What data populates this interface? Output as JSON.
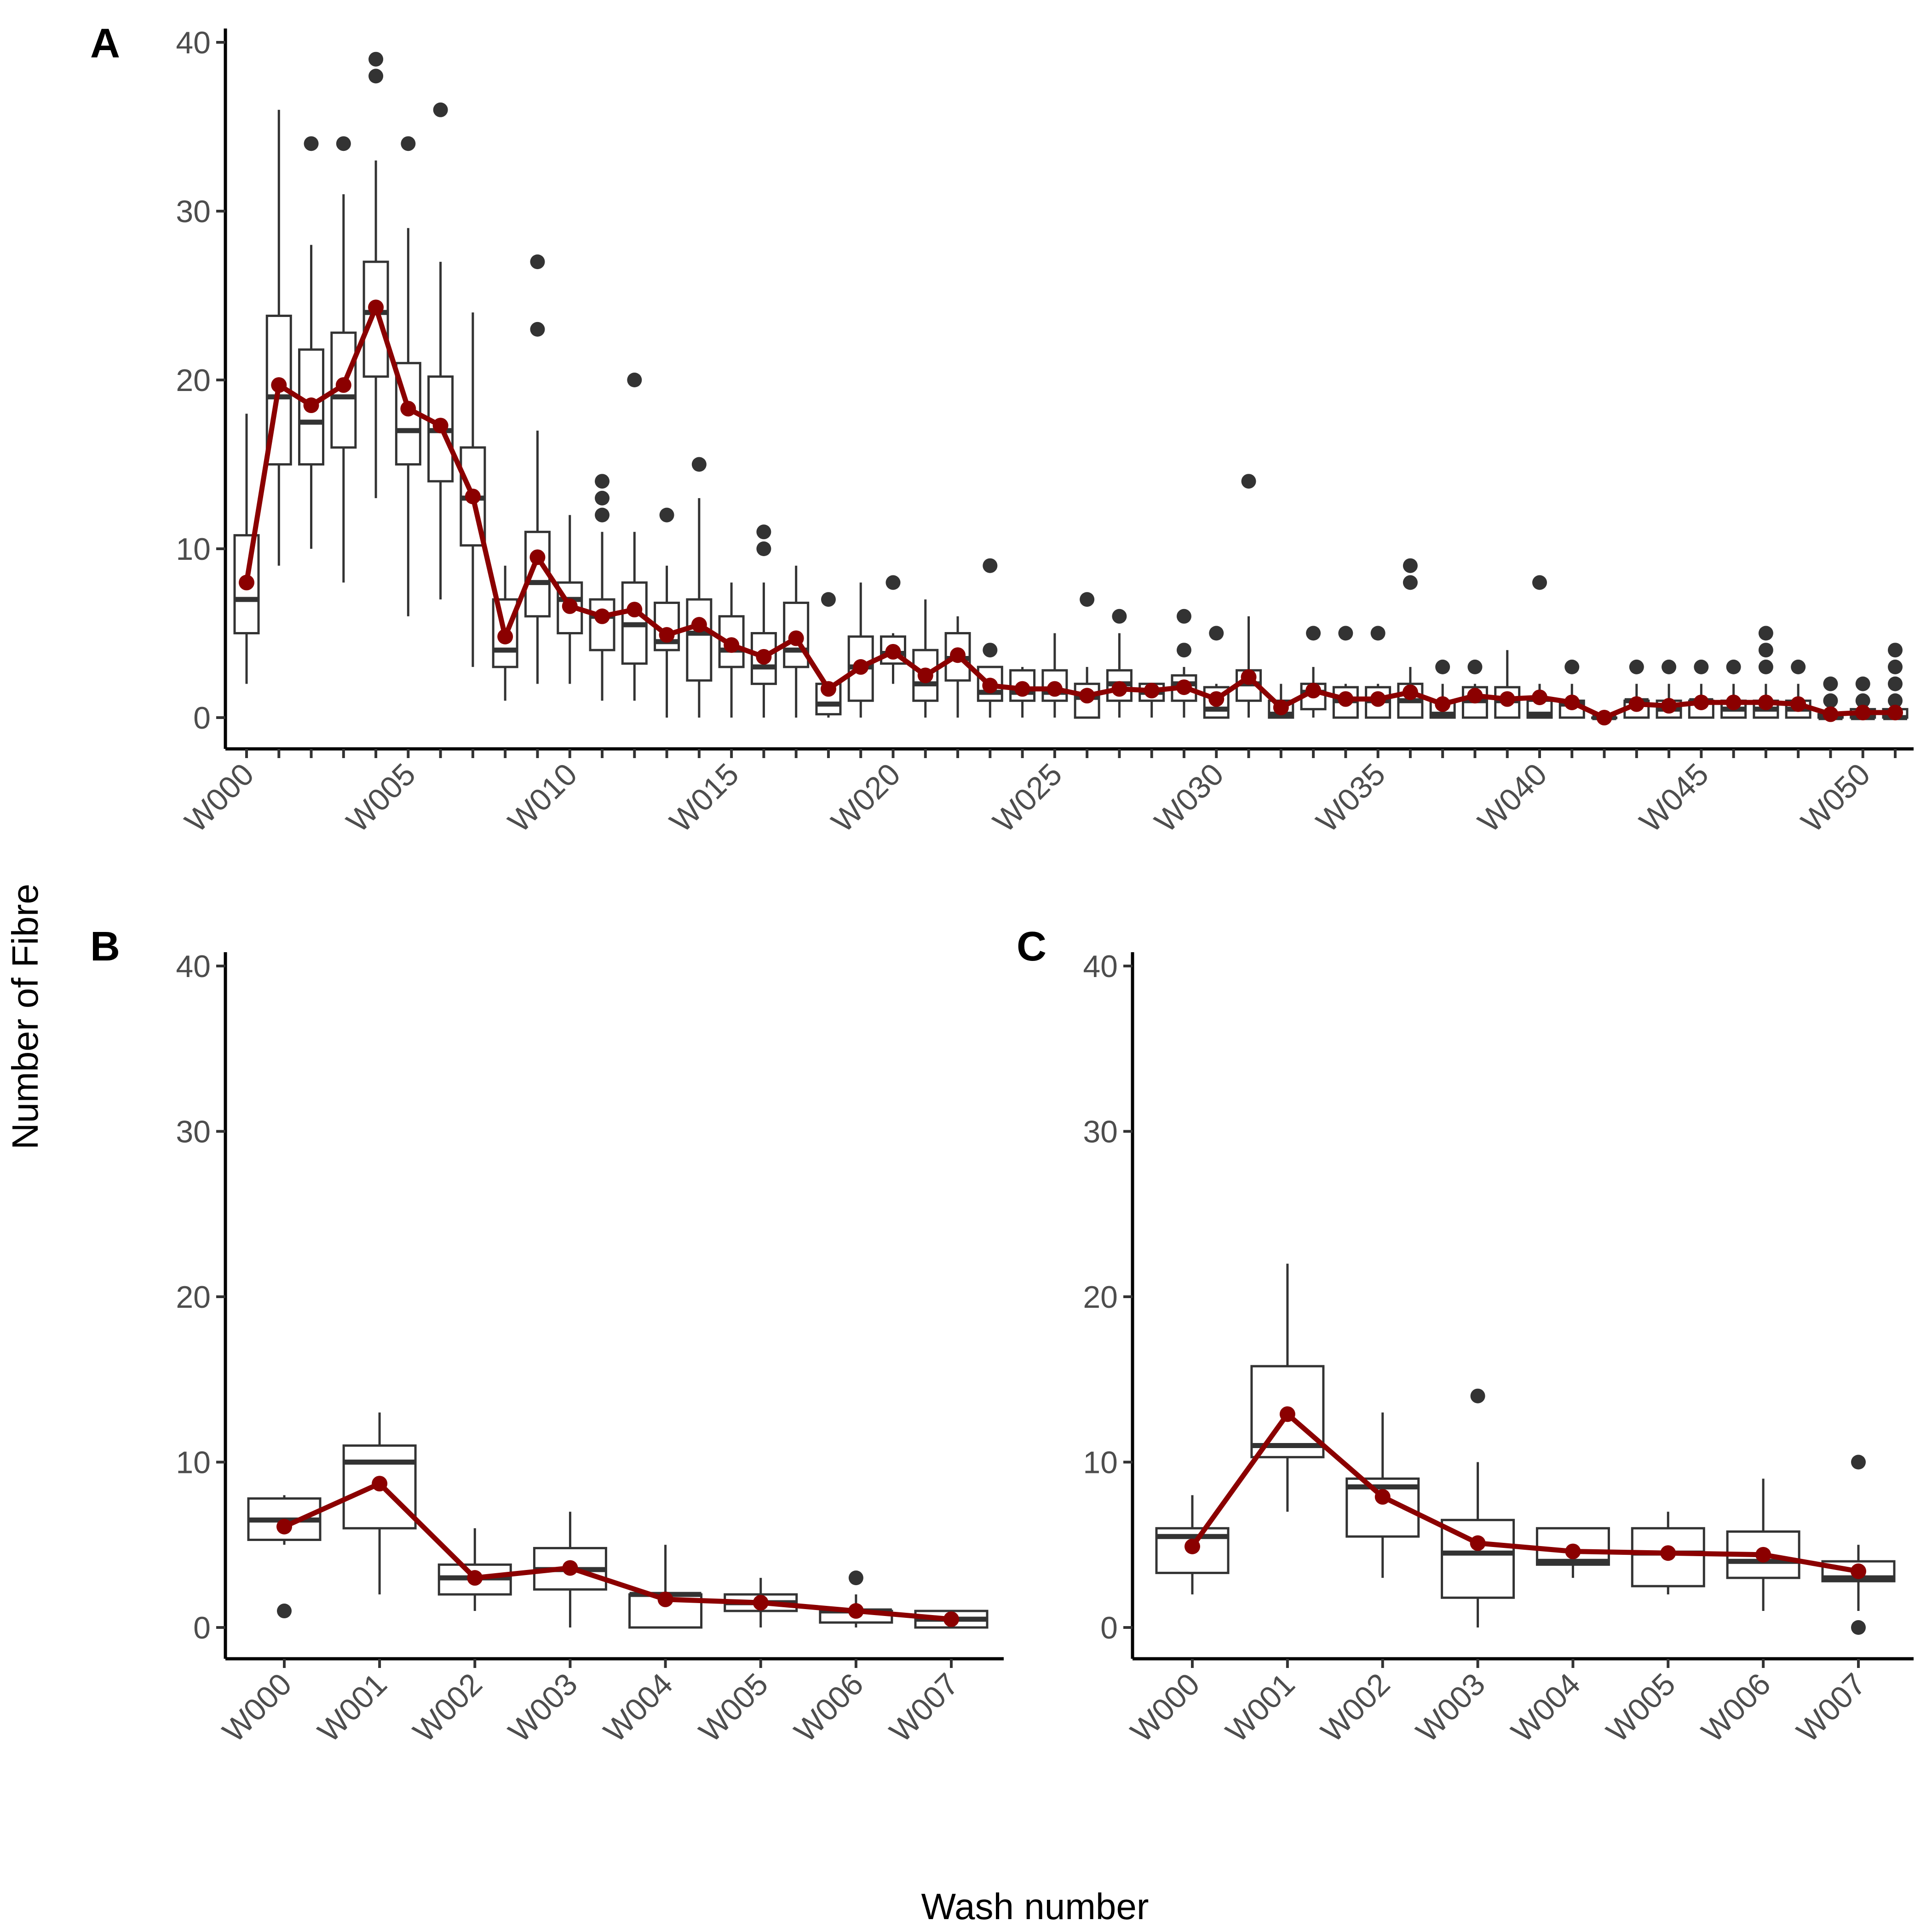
{
  "figure": {
    "ylabel": "Number of Fibre",
    "xlabel": "Wash number"
  },
  "colors": {
    "mean": "#8b0000",
    "box": "#333333",
    "text": "#4d4d4d"
  },
  "chart_data": [
    {
      "panel": "A",
      "type": "box",
      "ylim": [
        -1.5,
        41
      ],
      "yticks": [
        0,
        10,
        20,
        30,
        40
      ],
      "x_tick_labels": [
        "W000",
        "W005",
        "W010",
        "W015",
        "W020",
        "W025",
        "W030",
        "W035",
        "W040",
        "W045",
        "W050"
      ],
      "x_tick_every": 5,
      "categories": [
        "W000",
        "W001",
        "W002",
        "W003",
        "W004",
        "W005",
        "W006",
        "W007",
        "W008",
        "W009",
        "W010",
        "W011",
        "W012",
        "W013",
        "W014",
        "W015",
        "W016",
        "W017",
        "W018",
        "W019",
        "W020",
        "W021",
        "W022",
        "W023",
        "W024",
        "W025",
        "W026",
        "W027",
        "W028",
        "W029",
        "W030",
        "W031",
        "W032",
        "W033",
        "W034",
        "W035",
        "W036",
        "W037",
        "W038",
        "W039",
        "W040",
        "W041",
        "W042",
        "W043",
        "W044",
        "W045",
        "W046",
        "W047",
        "W048",
        "W049",
        "W050",
        "W051"
      ],
      "boxes": [
        {
          "q1": 5,
          "median": 7,
          "q3": 10.8,
          "lo": 2,
          "hi": 18,
          "out": []
        },
        {
          "q1": 15,
          "median": 19,
          "q3": 23.8,
          "lo": 9,
          "hi": 36,
          "out": []
        },
        {
          "q1": 15,
          "median": 17.5,
          "q3": 21.8,
          "lo": 10,
          "hi": 28,
          "out": [
            34
          ]
        },
        {
          "q1": 16,
          "median": 19,
          "q3": 22.8,
          "lo": 8,
          "hi": 31,
          "out": [
            34
          ]
        },
        {
          "q1": 20.2,
          "median": 24,
          "q3": 27,
          "lo": 13,
          "hi": 33,
          "out": [
            38,
            39
          ]
        },
        {
          "q1": 15,
          "median": 17,
          "q3": 21,
          "lo": 6,
          "hi": 29,
          "out": [
            34
          ]
        },
        {
          "q1": 14,
          "median": 17,
          "q3": 20.2,
          "lo": 7,
          "hi": 27,
          "out": [
            36
          ]
        },
        {
          "q1": 10.2,
          "median": 13,
          "q3": 16,
          "lo": 3,
          "hi": 24,
          "out": []
        },
        {
          "q1": 3,
          "median": 4,
          "q3": 7,
          "lo": 1,
          "hi": 9,
          "out": []
        },
        {
          "q1": 6,
          "median": 8,
          "q3": 11,
          "lo": 2,
          "hi": 17,
          "out": [
            23,
            27
          ]
        },
        {
          "q1": 5,
          "median": 7,
          "q3": 8,
          "lo": 2,
          "hi": 12,
          "out": []
        },
        {
          "q1": 4,
          "median": 6,
          "q3": 7,
          "lo": 1,
          "hi": 11,
          "out": [
            12,
            13,
            14
          ]
        },
        {
          "q1": 3.2,
          "median": 5.5,
          "q3": 8,
          "lo": 1,
          "hi": 11,
          "out": [
            20
          ]
        },
        {
          "q1": 4,
          "median": 4.5,
          "q3": 6.8,
          "lo": 0,
          "hi": 9,
          "out": [
            12
          ]
        },
        {
          "q1": 2.2,
          "median": 5,
          "q3": 7,
          "lo": 0,
          "hi": 13,
          "out": [
            15
          ]
        },
        {
          "q1": 3,
          "median": 4,
          "q3": 6,
          "lo": 0,
          "hi": 8,
          "out": []
        },
        {
          "q1": 2,
          "median": 3,
          "q3": 5,
          "lo": 0,
          "hi": 8,
          "out": [
            10,
            11
          ]
        },
        {
          "q1": 3,
          "median": 4,
          "q3": 6.8,
          "lo": 0,
          "hi": 9,
          "out": []
        },
        {
          "q1": 0.2,
          "median": 0.8,
          "q3": 2,
          "lo": 0,
          "hi": 2,
          "out": [
            7
          ]
        },
        {
          "q1": 1,
          "median": 3,
          "q3": 4.8,
          "lo": 0,
          "hi": 8,
          "out": []
        },
        {
          "q1": 3.2,
          "median": 3.8,
          "q3": 4.8,
          "lo": 2,
          "hi": 5,
          "out": [
            8
          ]
        },
        {
          "q1": 1,
          "median": 2,
          "q3": 4,
          "lo": 0,
          "hi": 7,
          "out": []
        },
        {
          "q1": 2.2,
          "median": 3.5,
          "q3": 5,
          "lo": 0,
          "hi": 6,
          "out": []
        },
        {
          "q1": 1,
          "median": 1.5,
          "q3": 3,
          "lo": 0,
          "hi": 3,
          "out": [
            4,
            9
          ]
        },
        {
          "q1": 1,
          "median": 1.5,
          "q3": 2.8,
          "lo": 0,
          "hi": 3,
          "out": []
        },
        {
          "q1": 1,
          "median": 1.5,
          "q3": 2.8,
          "lo": 0,
          "hi": 5,
          "out": []
        },
        {
          "q1": 0,
          "median": 1.2,
          "q3": 2,
          "lo": 0,
          "hi": 3,
          "out": [
            7
          ]
        },
        {
          "q1": 1,
          "median": 2,
          "q3": 2.8,
          "lo": 0,
          "hi": 5,
          "out": [
            6
          ]
        },
        {
          "q1": 1,
          "median": 1.5,
          "q3": 2,
          "lo": 0,
          "hi": 2,
          "out": []
        },
        {
          "q1": 1,
          "median": 2,
          "q3": 2.5,
          "lo": 0,
          "hi": 3,
          "out": [
            4,
            6
          ]
        },
        {
          "q1": 0,
          "median": 0.5,
          "q3": 1.8,
          "lo": 0,
          "hi": 2,
          "out": [
            5
          ]
        },
        {
          "q1": 1,
          "median": 2,
          "q3": 2.8,
          "lo": 0,
          "hi": 6,
          "out": [
            14
          ]
        },
        {
          "q1": 0,
          "median": 0.2,
          "q3": 1,
          "lo": 0,
          "hi": 2,
          "out": []
        },
        {
          "q1": 0.5,
          "median": 1.5,
          "q3": 2,
          "lo": 0,
          "hi": 3,
          "out": [
            5
          ]
        },
        {
          "q1": 0,
          "median": 1,
          "q3": 1.8,
          "lo": 0,
          "hi": 2,
          "out": [
            5
          ]
        },
        {
          "q1": 0,
          "median": 1,
          "q3": 1.8,
          "lo": 0,
          "hi": 2,
          "out": [
            5
          ]
        },
        {
          "q1": 0,
          "median": 1,
          "q3": 2,
          "lo": 0,
          "hi": 3,
          "out": [
            8,
            9
          ]
        },
        {
          "q1": 0,
          "median": 0.2,
          "q3": 1,
          "lo": 0,
          "hi": 2,
          "out": [
            3
          ]
        },
        {
          "q1": 0,
          "median": 1,
          "q3": 1.8,
          "lo": 0,
          "hi": 2,
          "out": [
            3
          ]
        },
        {
          "q1": 0,
          "median": 1,
          "q3": 1.8,
          "lo": 0,
          "hi": 4,
          "out": []
        },
        {
          "q1": 0,
          "median": 0.2,
          "q3": 1,
          "lo": 0,
          "hi": 2,
          "out": [
            8
          ]
        },
        {
          "q1": 0,
          "median": 0.8,
          "q3": 1,
          "lo": 0,
          "hi": 2,
          "out": [
            3
          ]
        },
        {
          "q1": 0,
          "median": 0,
          "q3": 0,
          "lo": 0,
          "hi": 0,
          "out": []
        },
        {
          "q1": 0,
          "median": 1,
          "q3": 1,
          "lo": 0,
          "hi": 2,
          "out": [
            3
          ]
        },
        {
          "q1": 0,
          "median": 0.5,
          "q3": 1,
          "lo": 0,
          "hi": 2,
          "out": [
            3
          ]
        },
        {
          "q1": 0,
          "median": 1,
          "q3": 1,
          "lo": 0,
          "hi": 2,
          "out": [
            3
          ]
        },
        {
          "q1": 0,
          "median": 0.5,
          "q3": 1,
          "lo": 0,
          "hi": 2,
          "out": [
            3
          ]
        },
        {
          "q1": 0,
          "median": 0.5,
          "q3": 1,
          "lo": 0,
          "hi": 2,
          "out": [
            3,
            4,
            5
          ]
        },
        {
          "q1": 0,
          "median": 0.5,
          "q3": 1,
          "lo": 0,
          "hi": 2,
          "out": [
            3
          ]
        },
        {
          "q1": 0,
          "median": 0,
          "q3": 0.2,
          "lo": 0,
          "hi": 0.5,
          "out": [
            1,
            2
          ]
        },
        {
          "q1": 0,
          "median": 0,
          "q3": 0.5,
          "lo": 0,
          "hi": 0.5,
          "out": [
            1,
            2
          ]
        },
        {
          "q1": 0,
          "median": 0,
          "q3": 0.5,
          "lo": 0,
          "hi": 0.5,
          "out": [
            1,
            2,
            3,
            4
          ]
        }
      ],
      "means": [
        8,
        19.7,
        18.5,
        19.7,
        24.3,
        18.3,
        17.3,
        13.1,
        4.8,
        9.5,
        6.6,
        6,
        6.4,
        4.9,
        5.5,
        4.3,
        3.6,
        4.7,
        1.7,
        3,
        3.9,
        2.5,
        3.7,
        1.9,
        1.7,
        1.7,
        1.3,
        1.7,
        1.6,
        1.8,
        1.1,
        2.4,
        0.6,
        1.6,
        1.1,
        1.1,
        1.5,
        0.8,
        1.3,
        1.1,
        1.2,
        0.9,
        0,
        0.8,
        0.7,
        0.9,
        0.9,
        0.9,
        0.8,
        0.2,
        0.3,
        0.3
      ]
    },
    {
      "panel": "B",
      "type": "box",
      "ylim": [
        -1.5,
        41
      ],
      "yticks": [
        0,
        10,
        20,
        30,
        40
      ],
      "categories": [
        "W000",
        "W001",
        "W002",
        "W003",
        "W004",
        "W005",
        "W006",
        "W007"
      ],
      "x_tick_every": 1,
      "boxes": [
        {
          "q1": 5.3,
          "median": 6.5,
          "q3": 7.8,
          "lo": 5,
          "hi": 8,
          "out": [
            1
          ]
        },
        {
          "q1": 6,
          "median": 10,
          "q3": 11,
          "lo": 2,
          "hi": 13,
          "out": []
        },
        {
          "q1": 2,
          "median": 3,
          "q3": 3.8,
          "lo": 1,
          "hi": 6,
          "out": []
        },
        {
          "q1": 2.3,
          "median": 3.5,
          "q3": 4.8,
          "lo": 0,
          "hi": 7,
          "out": []
        },
        {
          "q1": 0,
          "median": 2,
          "q3": 2,
          "lo": 0,
          "hi": 5,
          "out": []
        },
        {
          "q1": 1,
          "median": 1.5,
          "q3": 2,
          "lo": 0,
          "hi": 3,
          "out": []
        },
        {
          "q1": 0.3,
          "median": 1,
          "q3": 1,
          "lo": 0,
          "hi": 2,
          "out": [
            3
          ]
        },
        {
          "q1": 0,
          "median": 0.5,
          "q3": 1,
          "lo": 0,
          "hi": 1,
          "out": []
        }
      ],
      "means": [
        6.1,
        8.7,
        3,
        3.6,
        1.7,
        1.5,
        1,
        0.5
      ]
    },
    {
      "panel": "C",
      "type": "box",
      "ylim": [
        -1.5,
        41
      ],
      "yticks": [
        0,
        10,
        20,
        30,
        40
      ],
      "categories": [
        "W000",
        "W001",
        "W002",
        "W003",
        "W004",
        "W005",
        "W006",
        "W007"
      ],
      "x_tick_every": 1,
      "boxes": [
        {
          "q1": 3.3,
          "median": 5.5,
          "q3": 6,
          "lo": 2,
          "hi": 8,
          "out": []
        },
        {
          "q1": 10.3,
          "median": 11,
          "q3": 15.8,
          "lo": 7,
          "hi": 22,
          "out": []
        },
        {
          "q1": 5.5,
          "median": 8.5,
          "q3": 9,
          "lo": 3,
          "hi": 13,
          "out": []
        },
        {
          "q1": 1.8,
          "median": 4.5,
          "q3": 6.5,
          "lo": 0,
          "hi": 10,
          "out": [
            14
          ]
        },
        {
          "q1": 3.8,
          "median": 4,
          "q3": 6,
          "lo": 3,
          "hi": 6,
          "out": []
        },
        {
          "q1": 2.5,
          "median": 4.5,
          "q3": 6,
          "lo": 2,
          "hi": 7,
          "out": []
        },
        {
          "q1": 3,
          "median": 4,
          "q3": 5.8,
          "lo": 1,
          "hi": 9,
          "out": []
        },
        {
          "q1": 2.8,
          "median": 3,
          "q3": 4,
          "lo": 1,
          "hi": 5,
          "out": [
            0,
            10
          ]
        }
      ],
      "means": [
        4.9,
        12.9,
        7.9,
        5.1,
        4.6,
        4.5,
        4.4,
        3.4
      ]
    }
  ]
}
